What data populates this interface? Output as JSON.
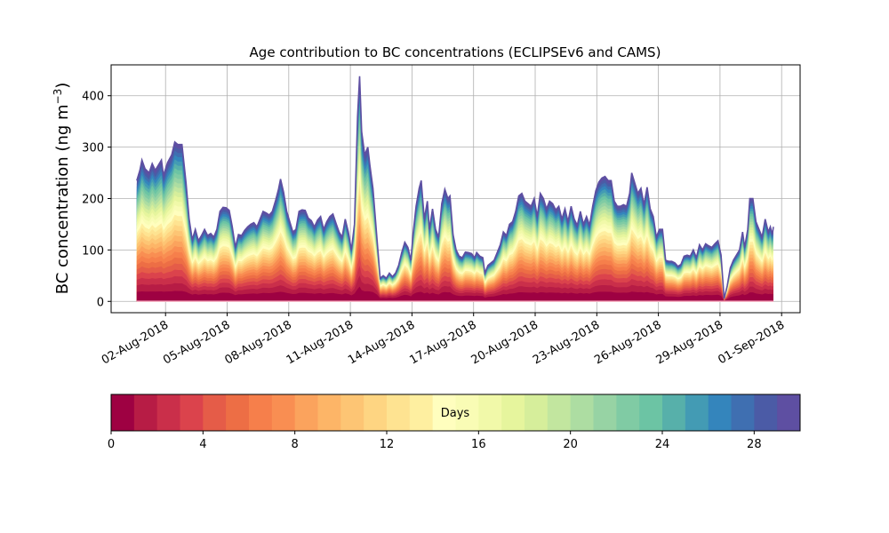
{
  "chart_data": {
    "type": "area",
    "stacked": true,
    "title": "Age contribution to BC concentrations (ECLIPSEv6 and CAMS)",
    "xlabel": "",
    "ylabel": "BC concentration (ng m",
    "ylabel_superscript": "−3",
    "ylabel_close": ")",
    "ylim": [
      -22,
      460
    ],
    "yticks": [
      0,
      100,
      200,
      300,
      400
    ],
    "grid": true,
    "x_start": "01-Aug-2018",
    "x_range_days": [
      -0.65,
      32.9
    ],
    "data_span_days": [
      0.6,
      31.6
    ],
    "xticks": [
      {
        "day": 2,
        "label": "02-Aug-2018"
      },
      {
        "day": 5,
        "label": "05-Aug-2018"
      },
      {
        "day": 8,
        "label": "08-Aug-2018"
      },
      {
        "day": 11,
        "label": "11-Aug-2018"
      },
      {
        "day": 14,
        "label": "14-Aug-2018"
      },
      {
        "day": 17,
        "label": "17-Aug-2018"
      },
      {
        "day": 20,
        "label": "20-Aug-2018"
      },
      {
        "day": 23,
        "label": "23-Aug-2018"
      },
      {
        "day": 26,
        "label": "26-Aug-2018"
      },
      {
        "day": 29,
        "label": "29-Aug-2018"
      },
      {
        "day": 32,
        "label": "01-Sep-2018"
      }
    ],
    "total_series": [
      [
        0.6,
        235
      ],
      [
        0.75,
        255
      ],
      [
        0.85,
        275
      ],
      [
        1.0,
        258
      ],
      [
        1.2,
        250
      ],
      [
        1.35,
        268
      ],
      [
        1.5,
        255
      ],
      [
        1.65,
        265
      ],
      [
        1.8,
        275
      ],
      [
        1.9,
        245
      ],
      [
        2.1,
        270
      ],
      [
        2.3,
        285
      ],
      [
        2.45,
        310
      ],
      [
        2.6,
        305
      ],
      [
        2.8,
        305
      ],
      [
        3.0,
        230
      ],
      [
        3.15,
        160
      ],
      [
        3.3,
        120
      ],
      [
        3.45,
        140
      ],
      [
        3.6,
        118
      ],
      [
        3.75,
        128
      ],
      [
        3.9,
        140
      ],
      [
        4.05,
        128
      ],
      [
        4.2,
        132
      ],
      [
        4.35,
        125
      ],
      [
        4.5,
        140
      ],
      [
        4.65,
        175
      ],
      [
        4.8,
        183
      ],
      [
        4.95,
        182
      ],
      [
        5.1,
        177
      ],
      [
        5.25,
        145
      ],
      [
        5.4,
        105
      ],
      [
        5.55,
        130
      ],
      [
        5.7,
        128
      ],
      [
        5.85,
        138
      ],
      [
        6.0,
        145
      ],
      [
        6.15,
        150
      ],
      [
        6.3,
        153
      ],
      [
        6.45,
        145
      ],
      [
        6.6,
        160
      ],
      [
        6.75,
        175
      ],
      [
        6.9,
        172
      ],
      [
        7.05,
        168
      ],
      [
        7.2,
        175
      ],
      [
        7.35,
        195
      ],
      [
        7.5,
        218
      ],
      [
        7.6,
        238
      ],
      [
        7.75,
        212
      ],
      [
        7.9,
        175
      ],
      [
        8.05,
        155
      ],
      [
        8.2,
        135
      ],
      [
        8.35,
        140
      ],
      [
        8.5,
        175
      ],
      [
        8.65,
        178
      ],
      [
        8.8,
        177
      ],
      [
        8.95,
        162
      ],
      [
        9.1,
        157
      ],
      [
        9.25,
        145
      ],
      [
        9.4,
        158
      ],
      [
        9.55,
        165
      ],
      [
        9.7,
        140
      ],
      [
        9.85,
        155
      ],
      [
        10.0,
        165
      ],
      [
        10.15,
        170
      ],
      [
        10.3,
        152
      ],
      [
        10.45,
        135
      ],
      [
        10.6,
        125
      ],
      [
        10.75,
        160
      ],
      [
        10.9,
        135
      ],
      [
        11.05,
        100
      ],
      [
        11.2,
        150
      ],
      [
        11.35,
        360
      ],
      [
        11.45,
        438
      ],
      [
        11.55,
        330
      ],
      [
        11.7,
        285
      ],
      [
        11.85,
        300
      ],
      [
        11.95,
        265
      ],
      [
        12.1,
        220
      ],
      [
        12.3,
        120
      ],
      [
        12.45,
        45
      ],
      [
        12.6,
        50
      ],
      [
        12.75,
        45
      ],
      [
        12.9,
        55
      ],
      [
        13.05,
        48
      ],
      [
        13.2,
        55
      ],
      [
        13.35,
        70
      ],
      [
        13.5,
        95
      ],
      [
        13.65,
        115
      ],
      [
        13.8,
        105
      ],
      [
        13.95,
        80
      ],
      [
        14.05,
        130
      ],
      [
        14.2,
        185
      ],
      [
        14.35,
        220
      ],
      [
        14.45,
        235
      ],
      [
        14.6,
        160
      ],
      [
        14.75,
        195
      ],
      [
        14.85,
        140
      ],
      [
        15.0,
        180
      ],
      [
        15.15,
        140
      ],
      [
        15.3,
        125
      ],
      [
        15.45,
        190
      ],
      [
        15.6,
        218
      ],
      [
        15.75,
        200
      ],
      [
        15.85,
        205
      ],
      [
        16.0,
        130
      ],
      [
        16.15,
        100
      ],
      [
        16.3,
        88
      ],
      [
        16.45,
        85
      ],
      [
        16.6,
        96
      ],
      [
        16.75,
        95
      ],
      [
        16.9,
        93
      ],
      [
        17.05,
        85
      ],
      [
        17.15,
        95
      ],
      [
        17.3,
        88
      ],
      [
        17.45,
        85
      ],
      [
        17.55,
        55
      ],
      [
        17.7,
        70
      ],
      [
        17.85,
        75
      ],
      [
        18.0,
        80
      ],
      [
        18.15,
        95
      ],
      [
        18.3,
        110
      ],
      [
        18.45,
        135
      ],
      [
        18.6,
        128
      ],
      [
        18.75,
        150
      ],
      [
        18.9,
        155
      ],
      [
        19.05,
        175
      ],
      [
        19.2,
        205
      ],
      [
        19.35,
        210
      ],
      [
        19.5,
        195
      ],
      [
        19.65,
        190
      ],
      [
        19.8,
        185
      ],
      [
        19.95,
        200
      ],
      [
        20.1,
        165
      ],
      [
        20.25,
        210
      ],
      [
        20.4,
        200
      ],
      [
        20.55,
        180
      ],
      [
        20.7,
        195
      ],
      [
        20.85,
        190
      ],
      [
        21.0,
        178
      ],
      [
        21.15,
        185
      ],
      [
        21.3,
        160
      ],
      [
        21.45,
        180
      ],
      [
        21.6,
        155
      ],
      [
        21.75,
        185
      ],
      [
        21.9,
        160
      ],
      [
        22.05,
        148
      ],
      [
        22.2,
        175
      ],
      [
        22.35,
        150
      ],
      [
        22.5,
        165
      ],
      [
        22.65,
        148
      ],
      [
        22.8,
        185
      ],
      [
        22.95,
        215
      ],
      [
        23.1,
        232
      ],
      [
        23.25,
        240
      ],
      [
        23.4,
        243
      ],
      [
        23.55,
        235
      ],
      [
        23.7,
        235
      ],
      [
        23.85,
        195
      ],
      [
        24.0,
        185
      ],
      [
        24.15,
        185
      ],
      [
        24.3,
        188
      ],
      [
        24.45,
        185
      ],
      [
        24.6,
        210
      ],
      [
        24.7,
        250
      ],
      [
        24.85,
        230
      ],
      [
        25.0,
        210
      ],
      [
        25.15,
        220
      ],
      [
        25.3,
        188
      ],
      [
        25.45,
        222
      ],
      [
        25.6,
        180
      ],
      [
        25.75,
        165
      ],
      [
        25.9,
        125
      ],
      [
        26.05,
        140
      ],
      [
        26.2,
        140
      ],
      [
        26.35,
        80
      ],
      [
        26.5,
        78
      ],
      [
        26.65,
        78
      ],
      [
        26.8,
        75
      ],
      [
        26.95,
        68
      ],
      [
        27.1,
        72
      ],
      [
        27.25,
        88
      ],
      [
        27.4,
        90
      ],
      [
        27.55,
        88
      ],
      [
        27.7,
        100
      ],
      [
        27.85,
        85
      ],
      [
        28.0,
        110
      ],
      [
        28.15,
        100
      ],
      [
        28.3,
        112
      ],
      [
        28.45,
        108
      ],
      [
        28.6,
        105
      ],
      [
        28.75,
        112
      ],
      [
        28.9,
        118
      ],
      [
        29.05,
        90
      ],
      [
        29.2,
        5
      ],
      [
        29.35,
        30
      ],
      [
        29.5,
        65
      ],
      [
        29.65,
        80
      ],
      [
        29.8,
        90
      ],
      [
        29.95,
        100
      ],
      [
        30.1,
        135
      ],
      [
        30.2,
        105
      ],
      [
        30.35,
        140
      ],
      [
        30.45,
        200
      ],
      [
        30.6,
        200
      ],
      [
        30.75,
        155
      ],
      [
        30.9,
        140
      ],
      [
        31.05,
        125
      ],
      [
        31.2,
        160
      ],
      [
        31.35,
        135
      ],
      [
        31.45,
        145
      ],
      [
        31.55,
        130
      ],
      [
        31.6,
        145
      ]
    ],
    "colorbar": {
      "label": "Days",
      "min": 0,
      "max": 30,
      "ticks": [
        0,
        4,
        8,
        12,
        16,
        20,
        24,
        28
      ],
      "colors": [
        "#9e0142",
        "#b71c45",
        "#ca2f4a",
        "#db434c",
        "#e55c48",
        "#ed6e45",
        "#f67f4b",
        "#f98e52",
        "#fba35d",
        "#fdb567",
        "#fdc574",
        "#fed582",
        "#fee391",
        "#feefa0",
        "#fffebe",
        "#f9fcb5",
        "#f1f9a9",
        "#e6f59d",
        "#d6ee9b",
        "#c2e69f",
        "#addda2",
        "#97d3a4",
        "#80cba4",
        "#6cc4a4",
        "#57b0aa",
        "#439bb4",
        "#3485bc",
        "#3f6fb1",
        "#4b5ba6",
        "#5e4fa2"
      ]
    }
  }
}
